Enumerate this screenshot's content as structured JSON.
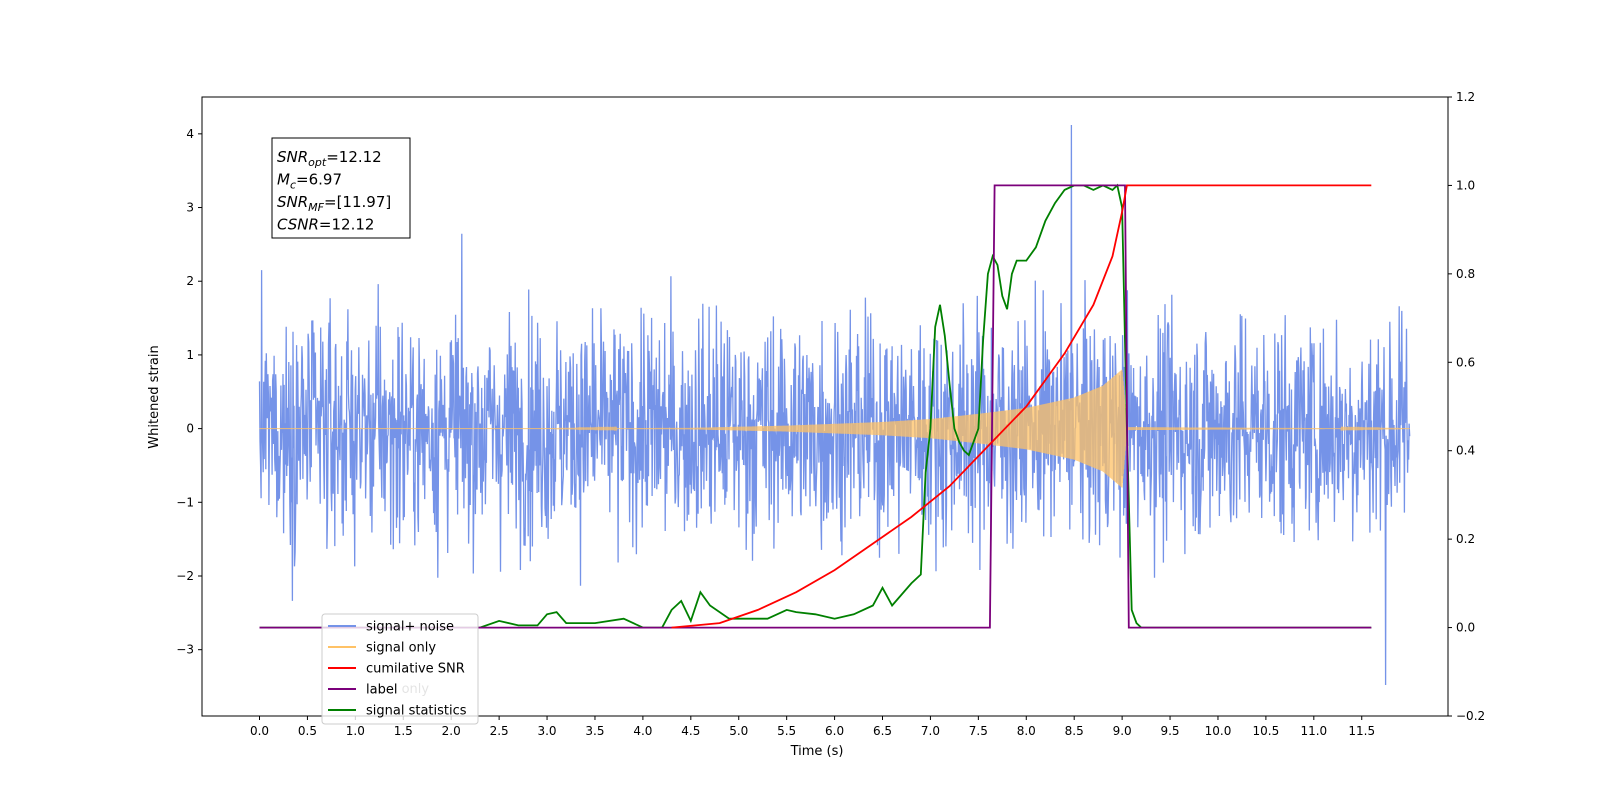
{
  "chart_data": {
    "type": "line",
    "xlabel": "Time (s)",
    "ylabel_left": "Whitened strain",
    "ylabel_right": "",
    "xlim": [
      -0.6,
      12.4
    ],
    "ylim_left": [
      -3.9,
      4.5
    ],
    "ylim_right": [
      -0.2,
      1.2
    ],
    "x_ticks": [
      "0.0",
      "0.5",
      "1.0",
      "1.5",
      "2.0",
      "2.5",
      "3.0",
      "3.5",
      "4.0",
      "4.5",
      "5.0",
      "5.5",
      "6.0",
      "6.5",
      "7.0",
      "7.5",
      "8.0",
      "8.5",
      "9.0",
      "9.5",
      "10.0",
      "10.5",
      "11.0",
      "11.5"
    ],
    "y_ticks_left": [
      "−3",
      "−2",
      "−1",
      "0",
      "1",
      "2",
      "3",
      "4"
    ],
    "y_ticks_right": [
      "−0.2",
      "0.0",
      "0.2",
      "0.4",
      "0.6",
      "0.8",
      "1.0",
      "1.2"
    ],
    "grid": false,
    "legend_placement": "lower-left",
    "series": [
      {
        "name": "signal+ noise",
        "axis": "left",
        "color": "#7593e8",
        "description_values": {
          "x_range": [
            0.0,
            12.0
          ],
          "typical_amplitude": 1.0,
          "max": 4.12,
          "min": -3.48,
          "max_at": 8.47,
          "min_at": 11.75
        }
      },
      {
        "name": "signal only",
        "axis": "left",
        "color": "#ffc266",
        "envelope": {
          "x": [
            0.0,
            3.0,
            4.5,
            5.5,
            6.5,
            7.0,
            7.5,
            8.0,
            8.5,
            8.8,
            9.0,
            9.05,
            12.0
          ],
          "amplitude": [
            0.0,
            0.0,
            0.01,
            0.04,
            0.09,
            0.13,
            0.2,
            0.28,
            0.42,
            0.58,
            0.8,
            0.02,
            0.0
          ]
        }
      },
      {
        "name": "cumilative SNR",
        "axis": "right",
        "color": "#ff0000",
        "x": [
          4.3,
          4.8,
          5.2,
          5.6,
          6.0,
          6.4,
          6.8,
          7.2,
          7.6,
          8.0,
          8.4,
          8.7,
          8.9,
          9.0,
          9.05,
          9.07,
          11.6
        ],
        "y": [
          0.0,
          0.01,
          0.04,
          0.08,
          0.13,
          0.19,
          0.25,
          0.32,
          0.41,
          0.5,
          0.62,
          0.73,
          0.84,
          0.94,
          1.0,
          1.0,
          1.0
        ]
      },
      {
        "name": "label",
        "axis": "right",
        "color": "#7b007b",
        "x": [
          0.0,
          7.62,
          7.67,
          9.03,
          9.07,
          11.6
        ],
        "y": [
          0.0,
          0.0,
          1.0,
          1.0,
          0.0,
          0.0
        ]
      },
      {
        "name": "signal statistics",
        "axis": "right",
        "color": "#008000",
        "x": [
          0.0,
          2.3,
          2.5,
          2.7,
          2.9,
          3.0,
          3.1,
          3.2,
          3.5,
          3.8,
          4.0,
          4.2,
          4.3,
          4.4,
          4.5,
          4.6,
          4.7,
          4.9,
          5.1,
          5.3,
          5.5,
          5.6,
          5.8,
          6.0,
          6.2,
          6.4,
          6.5,
          6.6,
          6.8,
          6.9,
          6.95,
          7.0,
          7.05,
          7.1,
          7.15,
          7.2,
          7.25,
          7.3,
          7.35,
          7.4,
          7.5,
          7.55,
          7.6,
          7.65,
          7.7,
          7.75,
          7.8,
          7.85,
          7.9,
          8.0,
          8.1,
          8.2,
          8.3,
          8.4,
          8.5,
          8.6,
          8.7,
          8.8,
          8.9,
          8.95,
          9.0,
          9.05,
          9.1,
          9.15,
          9.2,
          9.25,
          11.6
        ],
        "y": [
          0.0,
          0.0,
          0.015,
          0.005,
          0.005,
          0.03,
          0.035,
          0.01,
          0.01,
          0.02,
          0.0,
          0.0,
          0.04,
          0.06,
          0.015,
          0.08,
          0.05,
          0.02,
          0.02,
          0.02,
          0.04,
          0.035,
          0.03,
          0.02,
          0.03,
          0.05,
          0.09,
          0.05,
          0.1,
          0.12,
          0.35,
          0.45,
          0.68,
          0.73,
          0.66,
          0.55,
          0.45,
          0.42,
          0.4,
          0.39,
          0.45,
          0.65,
          0.8,
          0.84,
          0.82,
          0.75,
          0.72,
          0.8,
          0.83,
          0.83,
          0.86,
          0.92,
          0.96,
          0.99,
          1.0,
          1.0,
          0.99,
          1.0,
          0.99,
          1.0,
          0.95,
          0.45,
          0.04,
          0.01,
          0.0,
          0.0,
          0.0
        ]
      }
    ],
    "legend_labels": [
      "signal+ noise",
      "signal only",
      "cumilative SNR",
      "label",
      "signal statistics"
    ],
    "legend_overlap_ghost_text": [
      "label only",
      "statistics"
    ],
    "annotation_box": {
      "lines": [
        {
          "name": "SNR",
          "sub": "opt",
          "value": "=12.12"
        },
        {
          "name": "M",
          "sub": "c",
          "value": "=6.97"
        },
        {
          "name": "SNR",
          "sub": "MF",
          "value": "=[11.97]"
        },
        {
          "name": "CSNR",
          "sub": "",
          "value": "=12.12"
        }
      ]
    }
  }
}
